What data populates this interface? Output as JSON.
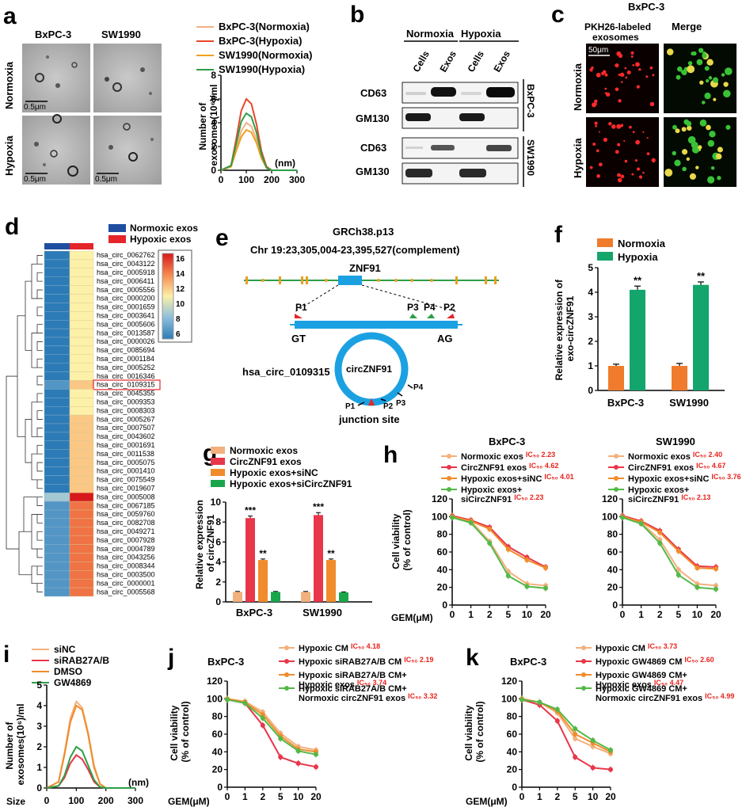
{
  "panel_a": {
    "label": "a",
    "col_labels": [
      "BxPC-3",
      "SW1990"
    ],
    "row_labels": [
      "Normoxia",
      "Hypoxia"
    ],
    "scalebar": "0.5μm",
    "chart_data": {
      "type": "line",
      "ylabel": "Number of exosomes(10⁶)/ml",
      "xunit": "(nm)",
      "x": [
        0,
        40,
        60,
        80,
        100,
        120,
        140,
        160,
        180,
        200,
        300
      ],
      "xticks": [
        "0",
        "100",
        "200",
        "300"
      ],
      "yticks": [
        "0",
        "2",
        "4",
        "6",
        "8"
      ],
      "xlim": [
        0,
        300
      ],
      "ylim": [
        0,
        8
      ],
      "series": [
        {
          "name": "BxPC-3(Normoxia)",
          "color": "#f4b183",
          "values": [
            0,
            0.3,
            1.8,
            3.3,
            4.0,
            3.7,
            2.6,
            1.1,
            0.2,
            0,
            0
          ]
        },
        {
          "name": "BxPC-3(Hypoxia)",
          "color": "#e8472a",
          "values": [
            0,
            0.4,
            2.6,
            5.0,
            6.0,
            5.6,
            3.9,
            1.6,
            0.3,
            0,
            0
          ]
        },
        {
          "name": "SW1990(Normoxia)",
          "color": "#f0a020",
          "values": [
            0,
            0.3,
            1.6,
            2.8,
            3.4,
            3.2,
            2.3,
            1.0,
            0.2,
            0,
            0
          ]
        },
        {
          "name": "SW1990(Hypoxia)",
          "color": "#2e9e48",
          "values": [
            0,
            0.4,
            2.2,
            4.1,
            4.8,
            4.5,
            3.2,
            1.3,
            0.2,
            0,
            0
          ]
        }
      ]
    }
  },
  "panel_b": {
    "label": "b",
    "groups": [
      "Normoxia",
      "Hypoxia"
    ],
    "lanes": [
      "Cells",
      "Exos",
      "Cells",
      "Exos"
    ],
    "rows": [
      "CD63",
      "GM130",
      "CD63",
      "GM130"
    ],
    "cell_lines": [
      "BxPC-3",
      "SW1990"
    ]
  },
  "panel_c": {
    "label": "c",
    "title": "BxPC-3",
    "col_labels": [
      "PKH26-labeled exosomes",
      "Merge"
    ],
    "row_labels": [
      "Normoxia",
      "Hypoxia"
    ],
    "scalebar": "50μm"
  },
  "panel_d": {
    "label": "d",
    "legend": [
      "Normoxic exos",
      "Hypoxic exos"
    ],
    "colorbar_ticks": [
      "16",
      "14",
      "12",
      "10",
      "8",
      "6"
    ],
    "highlight": "hsa_circ_0109315",
    "rows": [
      "hsa_circ_0062762",
      "hsa_circ_0043122",
      "hsa_circ_0005918",
      "hsa_circ_0006411",
      "hsa_circ_0005556",
      "hsa_circ_0000200",
      "hsa_circ_0001659",
      "hsa_circ_0003641",
      "hsa_circ_0005606",
      "hsa_circ_0013587",
      "hsa_circ_0000026",
      "hsa_circ_0085694",
      "hsa_circ_0001184",
      "hsa_circ_0005252",
      "hsa_circ_0016346",
      "hsa_circ_0109315",
      "hsa_circ_0045355",
      "hsa_circ_0009353",
      "hsa_circ_0008303",
      "hsa_circ_0005267",
      "hsa_circ_0007507",
      "hsa_circ_0043602",
      "hsa_circ_0001691",
      "hsa_circ_0011538",
      "hsa_circ_0005075",
      "hsa_circ_0001410",
      "hsa_circ_0075549",
      "hsa_circ_0019607",
      "hsa_circ_0005008",
      "hsa_circ_0067185",
      "hsa_circ_0059760",
      "hsa_circ_0082708",
      "hsa_circ_0049271",
      "hsa_circ_0007928",
      "hsa_circ_0004789",
      "hsa_circ_0043256",
      "hsa_circ_0008344",
      "hsa_circ_0003500",
      "hsa_circ_0000001",
      "hsa_circ_0005568"
    ],
    "normoxic": [
      6,
      6,
      6,
      6,
      6,
      6,
      6,
      6,
      6,
      6,
      6,
      6,
      6,
      6,
      6,
      7,
      6,
      6,
      6,
      6,
      6,
      6,
      6,
      6,
      6,
      6,
      6,
      6,
      9,
      7,
      7,
      7,
      7,
      7,
      7,
      7,
      7,
      7,
      7,
      7
    ],
    "hypoxic": [
      11,
      11,
      11,
      11,
      11,
      11,
      11,
      11,
      11,
      11,
      11,
      11,
      11,
      11,
      11,
      12,
      11,
      11,
      11,
      12,
      12,
      12,
      12,
      12,
      12,
      12,
      12,
      12,
      16,
      14,
      14,
      14,
      14,
      14,
      14,
      14,
      14,
      14,
      14,
      14
    ]
  },
  "panel_e": {
    "label": "e",
    "title1": "GRCh38.p13",
    "title2": "Chr 19:23,305,004-23,395,527(complement)",
    "gene": "ZNF91",
    "primers": [
      "P1",
      "P3",
      "P4",
      "P2"
    ],
    "gt": "GT",
    "ag": "AG",
    "circ_id": "hsa_circ_0109315",
    "circ_name": "circZNF91",
    "junction": "junction site"
  },
  "panel_f": {
    "label": "f",
    "chart_data": {
      "type": "bar",
      "categories": [
        "BxPC-3",
        "SW1990"
      ],
      "series": [
        {
          "name": "Normoxia",
          "color": "#f07b2c",
          "values": [
            1.0,
            1.0
          ],
          "err": [
            0.07,
            0.1
          ]
        },
        {
          "name": "Hypoxia",
          "color": "#13a56b",
          "values": [
            4.1,
            4.3
          ],
          "err": [
            0.15,
            0.12
          ]
        }
      ],
      "ylabel": "Relative expression of exo-circZNF91",
      "yticks": [
        "0",
        "1",
        "2",
        "3",
        "4",
        "5"
      ],
      "ylim": [
        0,
        5
      ],
      "sig": [
        "**",
        "**"
      ]
    }
  },
  "panel_g": {
    "label": "g",
    "chart_data": {
      "type": "bar",
      "categories": [
        "BxPC-3",
        "SW1990"
      ],
      "series": [
        {
          "name": "Normoxic exos",
          "color": "#f2b07d",
          "values": [
            1.0,
            1.0
          ],
          "err": [
            0.05,
            0.05
          ]
        },
        {
          "name": "CircZNF91 exos",
          "color": "#e8364a",
          "values": [
            8.4,
            8.7
          ],
          "err": [
            0.2,
            0.25
          ]
        },
        {
          "name": "Hypoxic exos+siNC",
          "color": "#f08c2c",
          "values": [
            4.2,
            4.2
          ],
          "err": [
            0.1,
            0.1
          ]
        },
        {
          "name": "Hypoxic exos+siCircZNF91",
          "color": "#1aa64b",
          "values": [
            1.0,
            0.95
          ],
          "err": [
            0.05,
            0.05
          ]
        }
      ],
      "ylabel": "Relative expression of circZNF91",
      "yticks": [
        "0",
        "2",
        "4",
        "6",
        "8",
        "10"
      ],
      "ylim": [
        0,
        10
      ],
      "sig": [
        [
          "",
          "***",
          "**",
          ""
        ],
        [
          "",
          "***",
          "**",
          ""
        ]
      ]
    }
  },
  "panel_h": {
    "label": "h",
    "ylabel": "Cell viability (% of control)",
    "xlabel": "GEM(μM)",
    "chart_data": [
      {
        "type": "line",
        "title": "BxPC-3",
        "x": [
          "0",
          "1",
          "2",
          "5",
          "10",
          "20"
        ],
        "yticks": [
          "0",
          "20",
          "40",
          "60",
          "80",
          "100",
          "120"
        ],
        "ylim": [
          0,
          120
        ],
        "series": [
          {
            "name": "Normoxic exos",
            "ic50": "IC₅₀ 2.23",
            "color": "#f2b07d",
            "values": [
              100,
              95,
              72,
              38,
              24,
              22
            ]
          },
          {
            "name": "CircZNF91 exos",
            "ic50": "IC₅₀ 4.62",
            "color": "#e8364a",
            "values": [
              101,
              96,
              88,
              66,
              54,
              43
            ]
          },
          {
            "name": "Hypoxic exos+siNC",
            "ic50": "IC₅₀ 4.01",
            "color": "#f08c2c",
            "values": [
              100,
              95,
              86,
              63,
              51,
              42
            ]
          },
          {
            "name": "Hypoxic exos+ siCircZNF91",
            "ic50": "IC₅₀ 2.23",
            "color": "#54b848",
            "values": [
              99,
              93,
              70,
              33,
              21,
              19
            ]
          }
        ]
      },
      {
        "type": "line",
        "title": "SW1990",
        "x": [
          "0",
          "1",
          "2",
          "5",
          "10",
          "20"
        ],
        "yticks": [
          "0",
          "20",
          "40",
          "60",
          "80",
          "100",
          "120"
        ],
        "ylim": [
          0,
          120
        ],
        "series": [
          {
            "name": "Normoxic exos",
            "ic50": "IC₅₀ 2.40",
            "color": "#f2b07d",
            "values": [
              100,
              93,
              74,
              40,
              24,
              22
            ]
          },
          {
            "name": "CircZNF91 exos",
            "ic50": "IC₅₀ 4.67",
            "color": "#e8364a",
            "values": [
              101,
              95,
              84,
              63,
              44,
              43
            ]
          },
          {
            "name": "Hypoxic exos+siNC",
            "ic50": "IC₅₀ 3.76",
            "color": "#f08c2c",
            "values": [
              100,
              94,
              82,
              61,
              42,
              41
            ]
          },
          {
            "name": "Hypoxic exos+ siCircZNF91",
            "ic50": "IC₅₀ 2.13",
            "color": "#54b848",
            "values": [
              99,
              92,
              70,
              34,
              20,
              18
            ]
          }
        ]
      }
    ]
  },
  "panel_i": {
    "label": "i",
    "chart_data": {
      "type": "line",
      "ylabel": "Number of exosomes(10⁶)/ml",
      "xlabel": "Size",
      "xunit": "(nm)",
      "x": [
        0,
        40,
        60,
        80,
        100,
        120,
        140,
        160,
        180,
        200,
        300
      ],
      "xticks": [
        "0",
        "100",
        "200",
        "300"
      ],
      "yticks": [
        "0",
        "1",
        "2",
        "3",
        "4",
        "5"
      ],
      "ylim": [
        0,
        5
      ],
      "series": [
        {
          "name": "siNC",
          "color": "#f2b07d",
          "values": [
            0,
            0.3,
            1.7,
            3.4,
            4.2,
            3.9,
            2.7,
            1.1,
            0.2,
            0,
            0
          ]
        },
        {
          "name": "siRAB27A/B",
          "color": "#e8364a",
          "values": [
            0,
            0.1,
            0.5,
            1.2,
            1.6,
            1.4,
            0.9,
            0.3,
            0.05,
            0,
            0
          ]
        },
        {
          "name": "DMSO",
          "color": "#f08c2c",
          "values": [
            0,
            0.3,
            1.6,
            3.2,
            4.0,
            3.8,
            2.6,
            1.0,
            0.2,
            0,
            0
          ]
        },
        {
          "name": "GW4869",
          "color": "#2e9e48",
          "values": [
            0,
            0.1,
            0.6,
            1.5,
            2.0,
            1.8,
            1.1,
            0.4,
            0.05,
            0,
            0
          ]
        }
      ]
    }
  },
  "panel_j": {
    "label": "j",
    "ylabel": "Cell viability (% of control)",
    "xlabel": "GEM(μM)",
    "chart_data": {
      "type": "line",
      "title": "BxPC-3",
      "x": [
        "0",
        "1",
        "2",
        "5",
        "10",
        "20"
      ],
      "yticks": [
        "0",
        "20",
        "40",
        "60",
        "80",
        "100",
        "120"
      ],
      "ylim": [
        0,
        120
      ],
      "series": [
        {
          "name": "Hypoxic CM",
          "ic50": "IC₅₀ 4.18",
          "color": "#f2b07d",
          "values": [
            100,
            97,
            85,
            61,
            46,
            42
          ]
        },
        {
          "name": "Hypoxic siRAB27A/B CM",
          "ic50": "IC₅₀ 2.19",
          "color": "#e8364a",
          "values": [
            99,
            95,
            70,
            34,
            27,
            23
          ]
        },
        {
          "name": "Hypoxic siRAB27A/B CM+ Hypoxic exos",
          "ic50": "IC₅₀ 3.74",
          "color": "#f08c2c",
          "values": [
            100,
            96,
            82,
            58,
            43,
            40
          ]
        },
        {
          "name": "Hypoxic siRAB27A/B CM+ Normoxic circZNF91 exos",
          "ic50": "IC₅₀ 3.32",
          "color": "#54b848",
          "values": [
            99,
            95,
            78,
            55,
            41,
            37
          ]
        }
      ]
    }
  },
  "panel_k": {
    "label": "k",
    "ylabel": "Cell viability (% of control)",
    "xlabel": "GEM(μM)",
    "chart_data": {
      "type": "line",
      "title": "BxPC-3",
      "x": [
        "0",
        "1",
        "2",
        "5",
        "10",
        "20"
      ],
      "yticks": [
        "0",
        "20",
        "40",
        "60",
        "80",
        "100",
        "120"
      ],
      "ylim": [
        0,
        120
      ],
      "series": [
        {
          "name": "Hypoxic CM",
          "ic50": "IC₅₀ 3.73",
          "color": "#f2b07d",
          "values": [
            100,
            96,
            84,
            55,
            46,
            38
          ]
        },
        {
          "name": "Hypoxic GW4869 CM",
          "ic50": "IC₅₀ 2.60",
          "color": "#e8364a",
          "values": [
            99,
            93,
            75,
            34,
            22,
            20
          ]
        },
        {
          "name": "Hypoxic GW4869 CM+ Hypoxic exos",
          "ic50": "IC₅₀ 4.47",
          "color": "#f08c2c",
          "values": [
            100,
            96,
            86,
            60,
            50,
            40
          ]
        },
        {
          "name": "Hypoxic GW4869 CM+ Normoxic circZNF91 exos",
          "ic50": "IC₅₀ 4.99",
          "color": "#54b848",
          "values": [
            99,
            96,
            88,
            66,
            53,
            42
          ]
        }
      ]
    }
  }
}
